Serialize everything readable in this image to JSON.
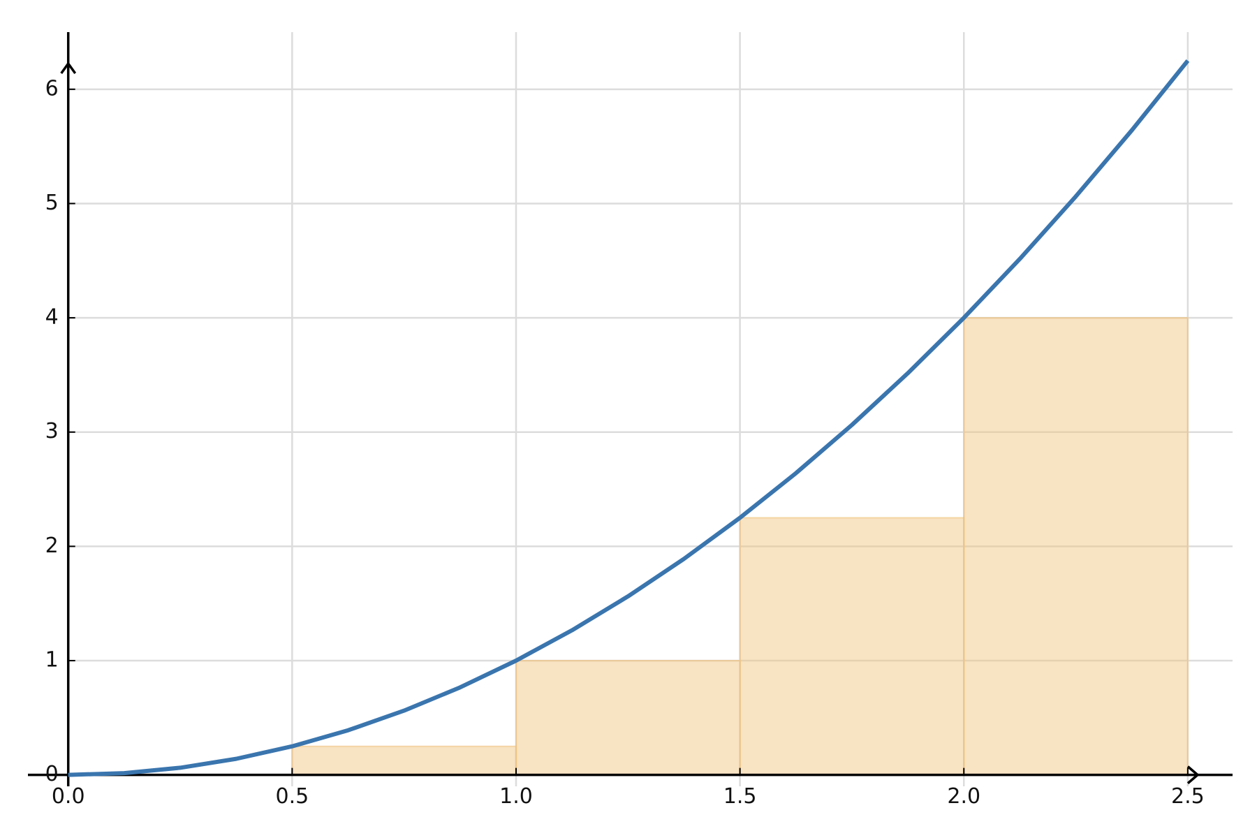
{
  "chart_data": {
    "type": "line",
    "x": [
      0,
      0.125,
      0.25,
      0.375,
      0.5,
      0.625,
      0.75,
      0.875,
      1,
      1.125,
      1.25,
      1.375,
      1.5,
      1.625,
      1.75,
      1.875,
      2,
      2.125,
      2.25,
      2.375,
      2.5
    ],
    "values": [
      0,
      0.015625,
      0.0625,
      0.140625,
      0.25,
      0.390625,
      0.5625,
      0.765625,
      1,
      1.265625,
      1.5625,
      1.890625,
      2.25,
      2.640625,
      3.0625,
      3.515625,
      4,
      4.515625,
      5.0625,
      5.640625,
      6.25
    ],
    "color": "#3a75ae",
    "bars": {
      "type": "bar",
      "bins": [
        0,
        0.5,
        1,
        1.5,
        2,
        2.5
      ],
      "values": [
        0,
        0.25,
        1,
        2.25,
        4
      ],
      "color": "#f0c27b"
    },
    "xlim": [
      -0.09,
      2.6
    ],
    "ylim": [
      -0.1,
      6.5
    ],
    "xticks": [
      {
        "value": 0,
        "label": "0.0"
      },
      0.5,
      {
        "value": 1,
        "label": "1.0"
      },
      1.5,
      {
        "value": 2,
        "label": "2.0"
      },
      2.5
    ],
    "yticks": [
      0,
      1,
      2,
      3,
      4,
      5,
      6
    ],
    "grid": true
  }
}
